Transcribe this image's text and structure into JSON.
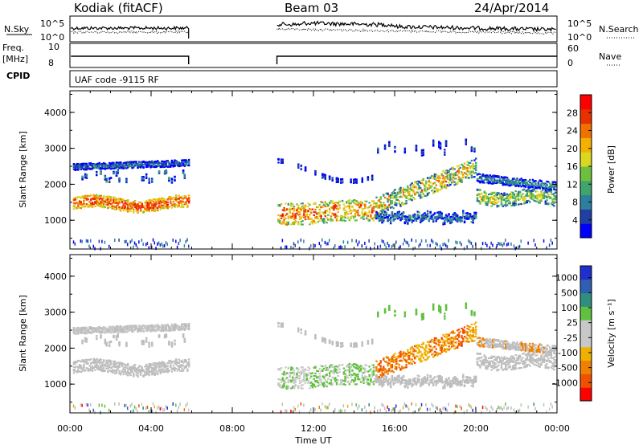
{
  "header": {
    "station": "Kodiak (fitACF)",
    "beam": "Beam 03",
    "date": "24/Apr/2014"
  },
  "strips": {
    "nsky_label": "N.Sky",
    "nsearch_label": "N.Search",
    "nsky_ticks": [
      "10^5",
      "10^0"
    ],
    "nsearch_ticks": [
      "10^5",
      "10^0"
    ],
    "freq_label": "Freq.",
    "freq_unit": "[MHz]",
    "freq_ticks": [
      "10",
      "8"
    ],
    "nave_label": "Nave",
    "nave_ticks": [
      "60",
      "0"
    ],
    "cpid_label": "CPID",
    "cpid_value": "UAF code -9115 RF"
  },
  "colors": {
    "power": [
      "#0000ff",
      "#1f3fa5",
      "#2c7f9e",
      "#3fa56a",
      "#6fbf3f",
      "#d8d820",
      "#f2b000",
      "#f07000",
      "#e83000",
      "#ff0000"
    ],
    "velocity": [
      "#ff0000",
      "#f05000",
      "#f08000",
      "#f0b000",
      "#c8c8c8",
      "#c8c8c8",
      "#60c040",
      "#2f8f7f",
      "#2f5fb0",
      "#1f2fcf"
    ],
    "ground_scatter": "#bebebe"
  },
  "chart_data": [
    {
      "type": "heatmap",
      "name": "power",
      "ylabel": "Slant Range [km]",
      "xlabel": "Time UT",
      "x_ticks": [
        "00:00",
        "04:00",
        "08:00",
        "12:00",
        "16:00",
        "20:00",
        "00:00"
      ],
      "xlim_hours": [
        0,
        24
      ],
      "y_ticks": [
        1000,
        2000,
        3000,
        4000
      ],
      "ylim": [
        200,
        4600
      ],
      "colorbar": {
        "label": "Power [dB]",
        "ticks": [
          4,
          8,
          12,
          16,
          20,
          24,
          28
        ],
        "range": [
          0,
          32
        ]
      },
      "data_gaps_hours": [
        [
          5.85,
          10.2
        ]
      ]
    },
    {
      "type": "heatmap",
      "name": "velocity",
      "ylabel": "Slant Range [km]",
      "xlabel": "Time UT",
      "x_ticks": [
        "00:00",
        "04:00",
        "08:00",
        "12:00",
        "16:00",
        "20:00",
        "00:00"
      ],
      "xlim_hours": [
        0,
        24
      ],
      "y_ticks": [
        1000,
        2000,
        3000,
        4000
      ],
      "ylim": [
        200,
        4600
      ],
      "colorbar": {
        "label": "Velocity [m s⁻¹]",
        "ticks": [
          1000,
          500,
          100,
          25,
          -25,
          -100,
          -500,
          -1000
        ]
      },
      "data_gaps_hours": [
        [
          5.85,
          10.2
        ]
      ]
    }
  ]
}
